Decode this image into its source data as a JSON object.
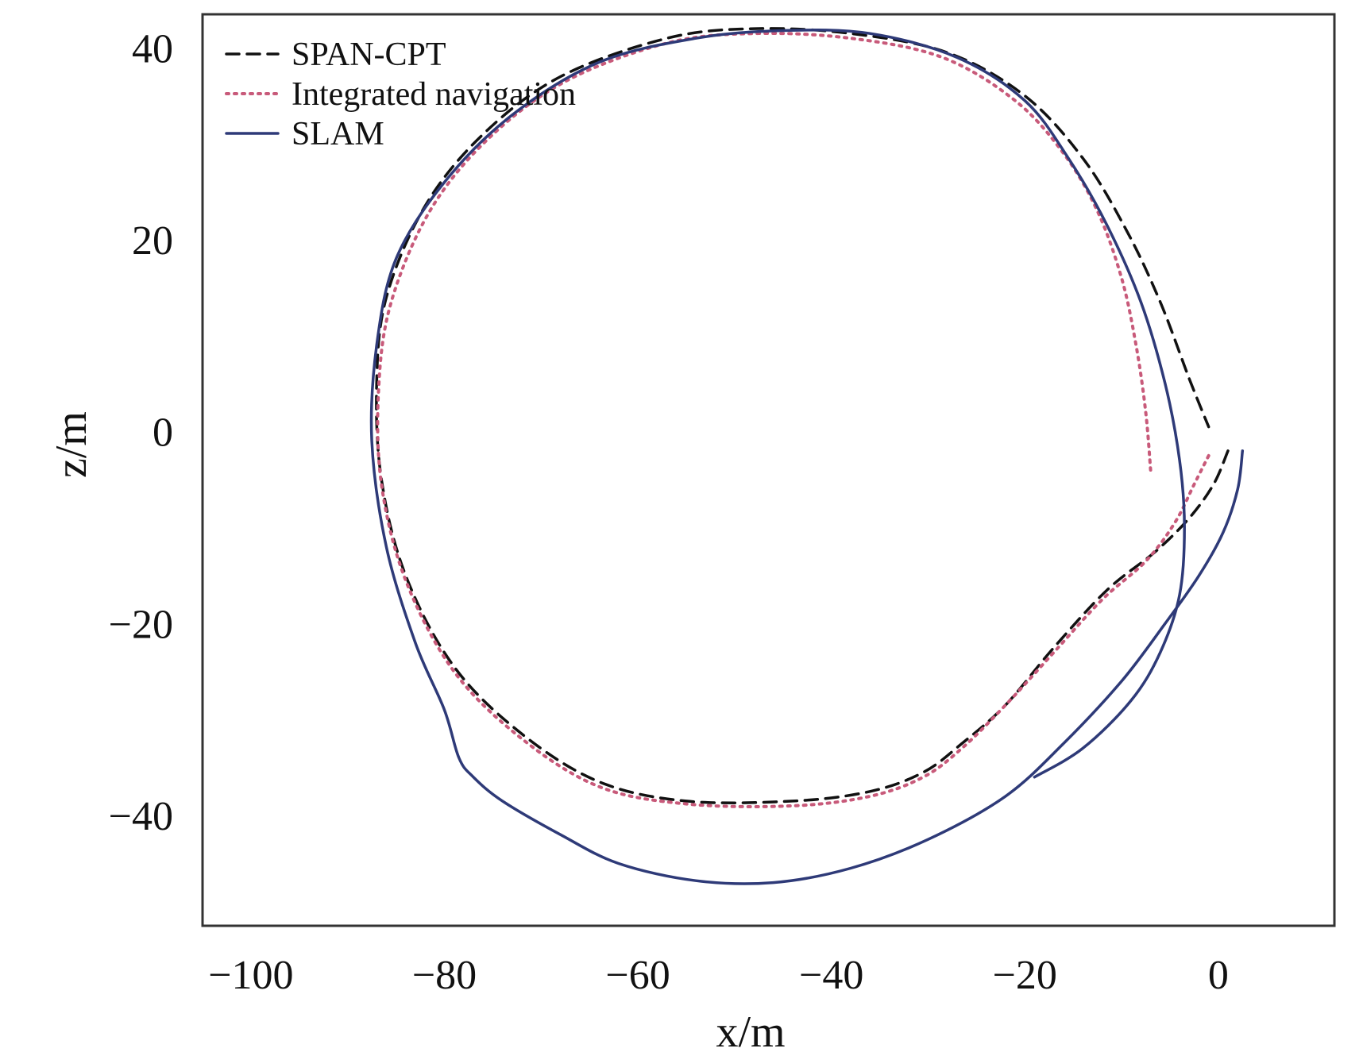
{
  "chart_data": {
    "type": "line",
    "title": "",
    "xlabel": "x/m",
    "ylabel": "z/m",
    "xlim": [
      -105,
      12
    ],
    "ylim": [
      -51.5,
      43.5
    ],
    "xticks": [
      -100,
      -80,
      -60,
      -40,
      -20,
      0
    ],
    "yticks": [
      40,
      20,
      0,
      -20,
      -40
    ],
    "grid": false,
    "legend": "top-left",
    "series": [
      {
        "name": "SPAN-CPT",
        "color": "#111111",
        "style": "dashed",
        "x": [
          1.0,
          -0.5,
          -3.0,
          -6.5,
          -11.5,
          -17.0,
          -22.0,
          -26.5,
          -30.5,
          -36.0,
          -44.0,
          -55.0,
          -64.0,
          -72.0,
          -79.0,
          -84.0,
          -86.5,
          -87.0,
          -86.0,
          -82.0,
          -76.0,
          -68.0,
          -57.0,
          -48.0,
          -38.0,
          -28.0,
          -20.0,
          -14.0,
          -9.5,
          -6.0,
          -3.0,
          -1.0
        ],
        "y": [
          -2.0,
          -5.5,
          -9.0,
          -12.5,
          -16.5,
          -22.5,
          -28.5,
          -32.5,
          -35.5,
          -37.5,
          -38.5,
          -38.5,
          -36.5,
          -31.5,
          -24.5,
          -15.0,
          -5.0,
          5.0,
          14.0,
          23.5,
          31.0,
          37.0,
          41.0,
          42.0,
          41.5,
          39.5,
          35.0,
          28.5,
          21.0,
          13.5,
          5.5,
          0.5
        ]
      },
      {
        "name": "Integrated navigation",
        "color": "#c85a7a",
        "style": "dotted",
        "x": [
          -1.0,
          -2.5,
          -4.5,
          -7.5,
          -12.0,
          -17.0,
          -22.0,
          -26.5,
          -30.5,
          -36.0,
          -44.0,
          -55.0,
          -64.0,
          -72.0,
          -79.0,
          -84.0,
          -86.5,
          -86.8,
          -85.5,
          -81.5,
          -75.5,
          -67.5,
          -57.0,
          -48.0,
          -38.0,
          -28.5,
          -21.0,
          -16.0,
          -12.5,
          -10.0,
          -8.5,
          -7.5,
          -7.0
        ],
        "y": [
          -2.5,
          -5.5,
          -9.5,
          -13.5,
          -17.5,
          -23.0,
          -28.5,
          -33.0,
          -36.0,
          -38.0,
          -39.0,
          -38.8,
          -37.0,
          -32.0,
          -25.0,
          -15.5,
          -5.5,
          4.5,
          13.5,
          23.0,
          30.5,
          36.5,
          40.5,
          41.5,
          41.0,
          39.0,
          34.5,
          29.0,
          23.0,
          16.0,
          9.0,
          2.0,
          -4.0
        ]
      },
      {
        "name": "SLAM",
        "color": "#2e3a78",
        "style": "solid",
        "x": [
          2.5,
          2.0,
          0.5,
          -2.0,
          -5.5,
          -10.0,
          -16.0,
          -22.0,
          -30.0,
          -38.0,
          -46.0,
          -54.0,
          -62.0,
          -68.0,
          -74.0,
          -77.0,
          -78.5,
          -80.0,
          -83.0,
          -86.0,
          -87.5,
          -87.0,
          -85.0,
          -80.0,
          -73.0,
          -64.0,
          -54.0,
          -45.0,
          -36.0,
          -27.0,
          -20.0,
          -15.5,
          -11.5,
          -8.0,
          -5.5,
          -4.0,
          -3.5,
          -4.0,
          -6.0,
          -9.0,
          -14.0,
          -19.0
        ],
        "y": [
          -2.0,
          -6.0,
          -10.5,
          -15.0,
          -20.0,
          -26.0,
          -32.5,
          -38.0,
          -42.5,
          -45.5,
          -47.0,
          -46.8,
          -45.0,
          -42.0,
          -38.5,
          -36.0,
          -34.0,
          -29.0,
          -22.0,
          -12.0,
          -1.0,
          9.0,
          18.0,
          26.0,
          33.0,
          38.5,
          41.0,
          41.8,
          41.5,
          39.0,
          34.5,
          28.5,
          21.5,
          13.5,
          5.0,
          -3.0,
          -10.0,
          -17.0,
          -23.0,
          -28.0,
          -33.0,
          -36.0
        ]
      }
    ]
  }
}
